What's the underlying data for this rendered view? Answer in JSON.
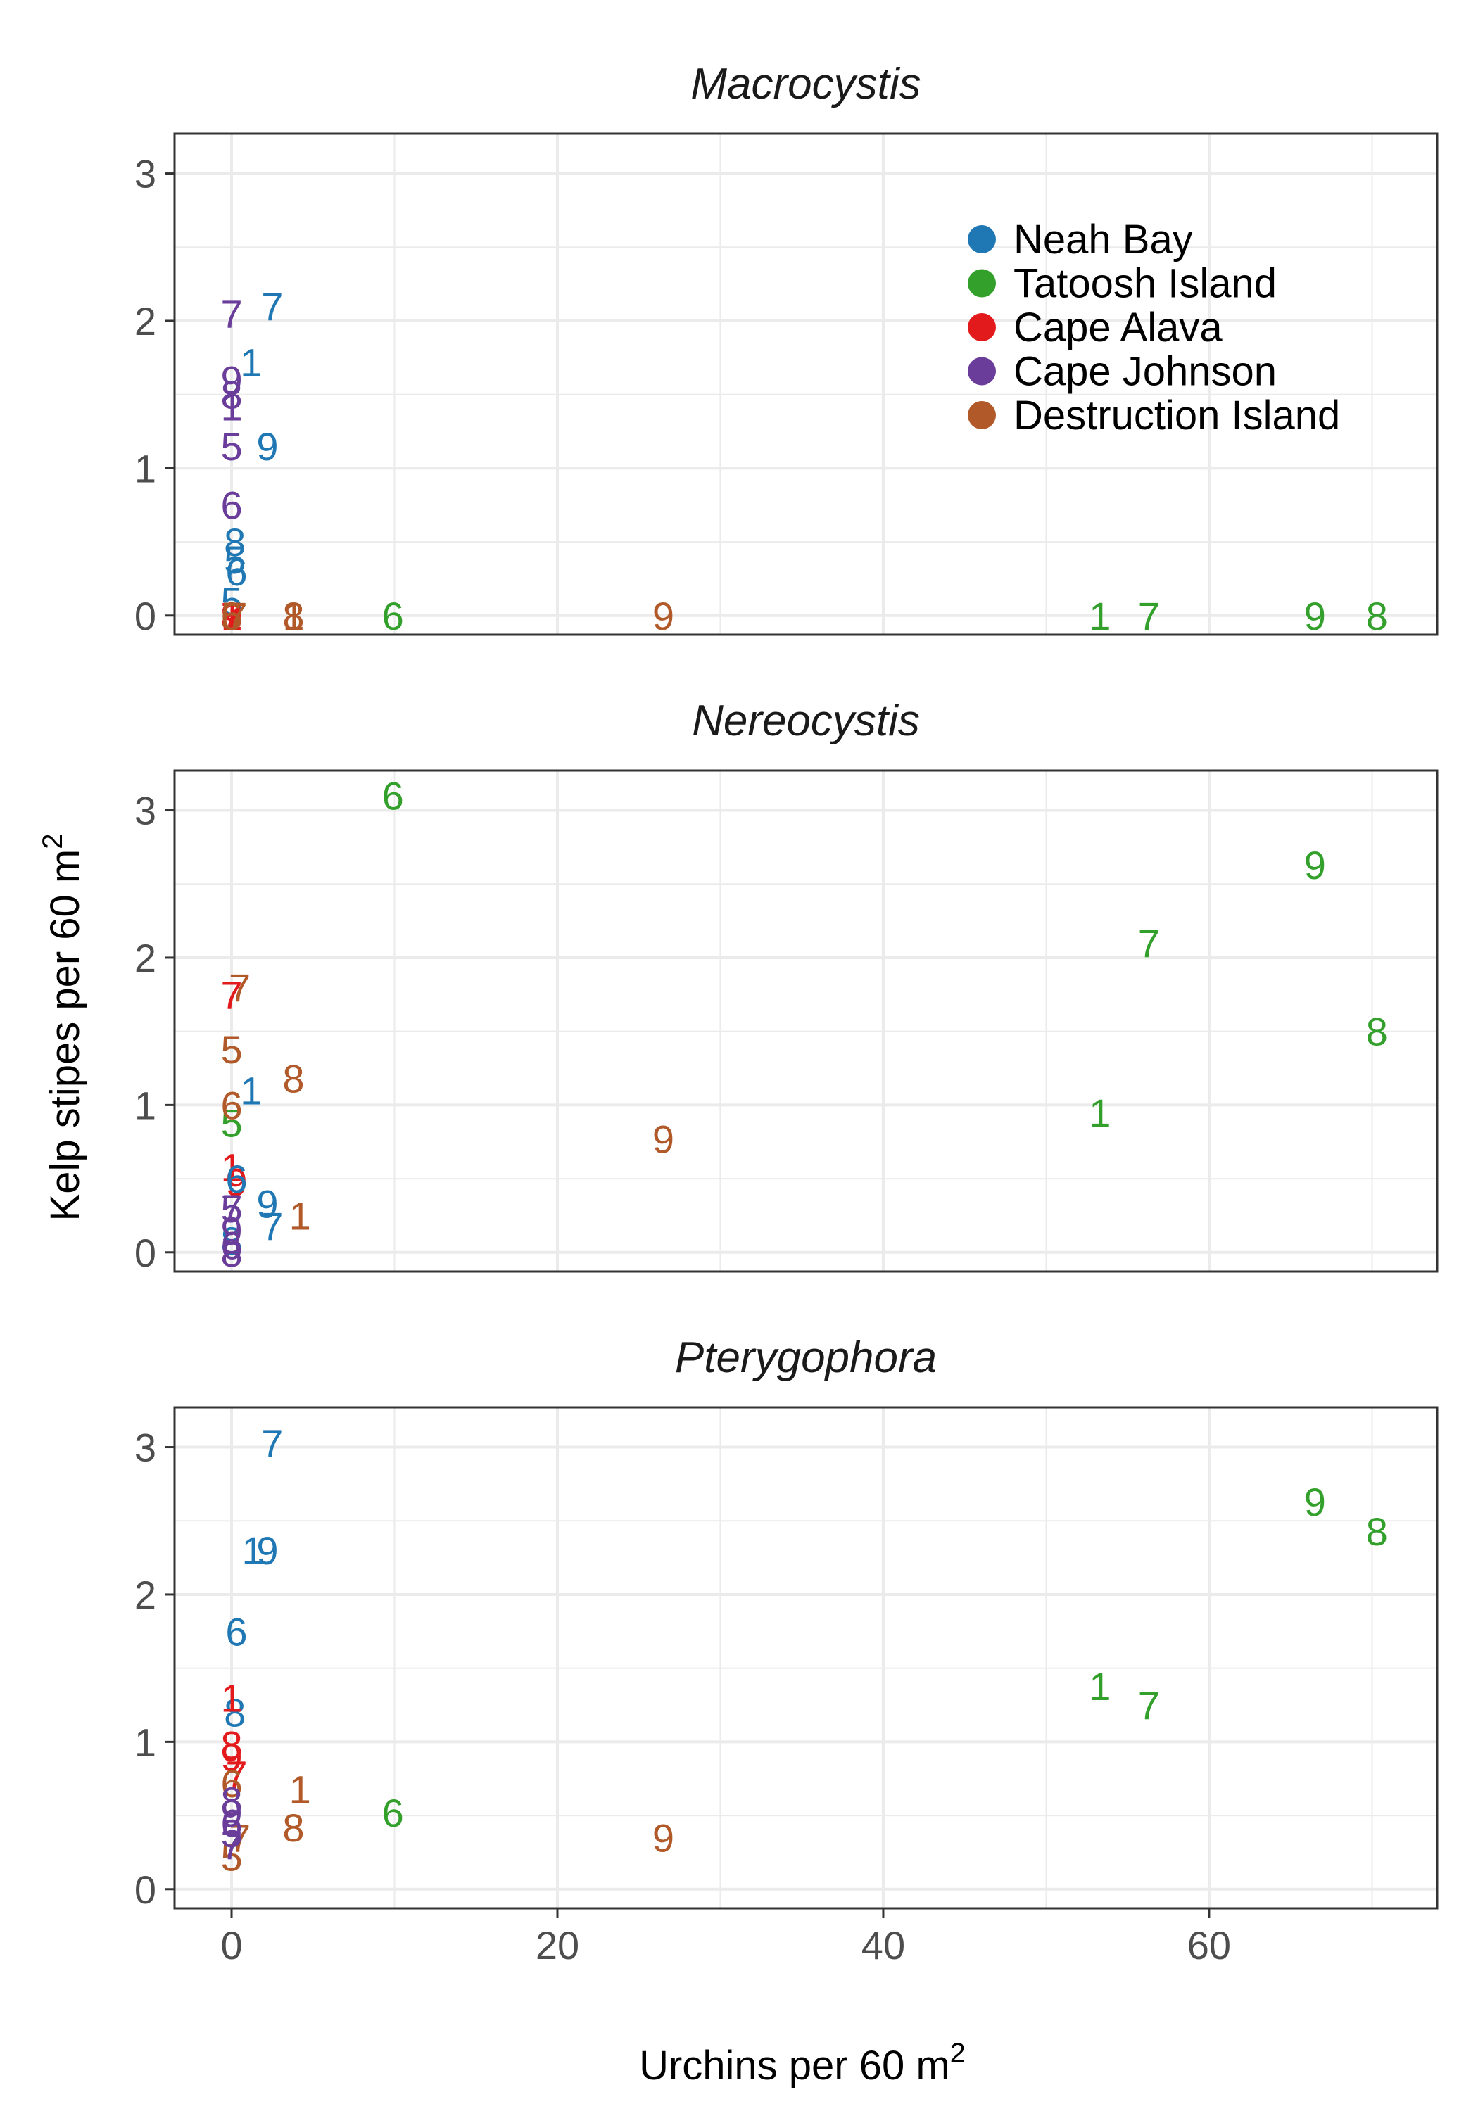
{
  "chart_data": {
    "type": "scatter",
    "marker": "site-number text labels",
    "xlabel": "Urchins per 60 m",
    "xlabel_sup": "2",
    "ylabel": "Kelp stipes per 60 m",
    "ylabel_sup": "2",
    "xlim": [
      -3.5,
      74
    ],
    "ylim": [
      -0.13,
      3.27
    ],
    "xticks": [
      0,
      20,
      40,
      60
    ],
    "yticks": [
      0,
      1,
      2,
      3
    ],
    "grid": true,
    "legend_position": "top-right (inside first panel)",
    "legend": [
      {
        "name": "Neah Bay",
        "color": "#1f78b4"
      },
      {
        "name": "Tatoosh Island",
        "color": "#33a02c"
      },
      {
        "name": "Cape Alava",
        "color": "#e31a1c"
      },
      {
        "name": "Cape Johnson",
        "color": "#6a3d9a"
      },
      {
        "name": "Destruction Island",
        "color": "#b15928"
      }
    ],
    "panels": [
      {
        "title": "Macrocystis",
        "points": [
          {
            "site": "Neah Bay",
            "label": "7",
            "x": 2.5,
            "y": 2.1
          },
          {
            "site": "Neah Bay",
            "label": "1",
            "x": 1.2,
            "y": 1.72
          },
          {
            "site": "Neah Bay",
            "label": "9",
            "x": 2.2,
            "y": 1.15
          },
          {
            "site": "Neah Bay",
            "label": "8",
            "x": 0.2,
            "y": 0.5
          },
          {
            "site": "Neah Bay",
            "label": "5",
            "x": 0.2,
            "y": 0.38
          },
          {
            "site": "Neah Bay",
            "label": "6",
            "x": 0.3,
            "y": 0.3
          },
          {
            "site": "Neah Bay",
            "label": "5",
            "x": 0.0,
            "y": 0.1
          },
          {
            "site": "Cape Johnson",
            "label": "7",
            "x": 0.0,
            "y": 2.05
          },
          {
            "site": "Cape Johnson",
            "label": "9",
            "x": 0.0,
            "y": 1.6
          },
          {
            "site": "Cape Johnson",
            "label": "8",
            "x": 0.0,
            "y": 1.5
          },
          {
            "site": "Cape Johnson",
            "label": "1",
            "x": 0.0,
            "y": 1.42
          },
          {
            "site": "Cape Johnson",
            "label": "5",
            "x": 0.0,
            "y": 1.15
          },
          {
            "site": "Cape Johnson",
            "label": "6",
            "x": 0.0,
            "y": 0.75
          },
          {
            "site": "Cape Alava",
            "label": "1",
            "x": 0.0,
            "y": 0.0
          },
          {
            "site": "Cape Alava",
            "label": "5",
            "x": 0.0,
            "y": 0.0
          },
          {
            "site": "Cape Alava",
            "label": "7",
            "x": 0.0,
            "y": 0.0
          },
          {
            "site": "Cape Alava",
            "label": "8",
            "x": 0.0,
            "y": 0.0
          },
          {
            "site": "Cape Alava",
            "label": "9",
            "x": 0.0,
            "y": 0.0
          },
          {
            "site": "Destruction Island",
            "label": "5",
            "x": 0.0,
            "y": 0.0
          },
          {
            "site": "Destruction Island",
            "label": "6",
            "x": 0.0,
            "y": 0.0
          },
          {
            "site": "Destruction Island",
            "label": "7",
            "x": 0.3,
            "y": 0.0
          },
          {
            "site": "Destruction Island",
            "label": "1",
            "x": 3.8,
            "y": 0.0
          },
          {
            "site": "Destruction Island",
            "label": "8",
            "x": 3.8,
            "y": 0.0
          },
          {
            "site": "Destruction Island",
            "label": "9",
            "x": 26.5,
            "y": 0.0
          },
          {
            "site": "Tatoosh Island",
            "label": "6",
            "x": 9.9,
            "y": 0.0
          },
          {
            "site": "Tatoosh Island",
            "label": "1",
            "x": 53.3,
            "y": 0.0
          },
          {
            "site": "Tatoosh Island",
            "label": "7",
            "x": 56.3,
            "y": 0.0
          },
          {
            "site": "Tatoosh Island",
            "label": "9",
            "x": 66.5,
            "y": 0.0
          },
          {
            "site": "Tatoosh Island",
            "label": "8",
            "x": 70.3,
            "y": 0.0
          }
        ]
      },
      {
        "title": "Nereocystis",
        "points": [
          {
            "site": "Tatoosh Island",
            "label": "6",
            "x": 9.9,
            "y": 3.1
          },
          {
            "site": "Tatoosh Island",
            "label": "9",
            "x": 66.5,
            "y": 2.63
          },
          {
            "site": "Tatoosh Island",
            "label": "7",
            "x": 56.3,
            "y": 2.1
          },
          {
            "site": "Tatoosh Island",
            "label": "8",
            "x": 70.3,
            "y": 1.5
          },
          {
            "site": "Tatoosh Island",
            "label": "1",
            "x": 53.3,
            "y": 0.95
          },
          {
            "site": "Tatoosh Island",
            "label": "5",
            "x": 0.0,
            "y": 0.88
          },
          {
            "site": "Destruction Island",
            "label": "7",
            "x": 0.5,
            "y": 1.8
          },
          {
            "site": "Destruction Island",
            "label": "5",
            "x": 0.0,
            "y": 1.38
          },
          {
            "site": "Destruction Island",
            "label": "8",
            "x": 3.8,
            "y": 1.18
          },
          {
            "site": "Destruction Island",
            "label": "6",
            "x": 0.0,
            "y": 1.0
          },
          {
            "site": "Destruction Island",
            "label": "9",
            "x": 26.5,
            "y": 0.77
          },
          {
            "site": "Destruction Island",
            "label": "1",
            "x": 4.2,
            "y": 0.25
          },
          {
            "site": "Cape Alava",
            "label": "7",
            "x": 0.0,
            "y": 1.75
          },
          {
            "site": "Cape Alava",
            "label": "1",
            "x": 0.0,
            "y": 0.58
          },
          {
            "site": "Cape Alava",
            "label": "9",
            "x": 0.3,
            "y": 0.48
          },
          {
            "site": "Neah Bay",
            "label": "1",
            "x": 1.2,
            "y": 1.1
          },
          {
            "site": "Neah Bay",
            "label": "6",
            "x": 0.3,
            "y": 0.5
          },
          {
            "site": "Neah Bay",
            "label": "9",
            "x": 2.2,
            "y": 0.33
          },
          {
            "site": "Neah Bay",
            "label": "7",
            "x": 2.5,
            "y": 0.18
          },
          {
            "site": "Neah Bay",
            "label": "8",
            "x": 0.0,
            "y": 0.08
          },
          {
            "site": "Cape Johnson",
            "label": "5",
            "x": 0.0,
            "y": 0.3
          },
          {
            "site": "Cape Johnson",
            "label": "7",
            "x": 0.0,
            "y": 0.3
          },
          {
            "site": "Cape Johnson",
            "label": "9",
            "x": 0.0,
            "y": 0.15
          },
          {
            "site": "Cape Johnson",
            "label": "6",
            "x": 0.0,
            "y": 0.05
          },
          {
            "site": "Cape Johnson",
            "label": "8",
            "x": 0.0,
            "y": 0.0
          }
        ]
      },
      {
        "title": "Pterygophora",
        "points": [
          {
            "site": "Neah Bay",
            "label": "7",
            "x": 2.5,
            "y": 3.03
          },
          {
            "site": "Neah Bay",
            "label": "1",
            "x": 1.3,
            "y": 2.3
          },
          {
            "site": "Neah Bay",
            "label": "9",
            "x": 2.2,
            "y": 2.3
          },
          {
            "site": "Neah Bay",
            "label": "6",
            "x": 0.3,
            "y": 1.75
          },
          {
            "site": "Neah Bay",
            "label": "8",
            "x": 0.2,
            "y": 1.2
          },
          {
            "site": "Tatoosh Island",
            "label": "9",
            "x": 66.5,
            "y": 2.63
          },
          {
            "site": "Tatoosh Island",
            "label": "8",
            "x": 70.3,
            "y": 2.43
          },
          {
            "site": "Tatoosh Island",
            "label": "1",
            "x": 53.3,
            "y": 1.38
          },
          {
            "site": "Tatoosh Island",
            "label": "7",
            "x": 56.3,
            "y": 1.25
          },
          {
            "site": "Tatoosh Island",
            "label": "6",
            "x": 9.9,
            "y": 0.52
          },
          {
            "site": "Cape Alava",
            "label": "1",
            "x": 0.0,
            "y": 1.3
          },
          {
            "site": "Cape Alava",
            "label": "8",
            "x": 0.0,
            "y": 0.98
          },
          {
            "site": "Cape Alava",
            "label": "9",
            "x": 0.0,
            "y": 0.9
          },
          {
            "site": "Cape Alava",
            "label": "7",
            "x": 0.3,
            "y": 0.78
          },
          {
            "site": "Destruction Island",
            "label": "6",
            "x": 0.0,
            "y": 0.72
          },
          {
            "site": "Destruction Island",
            "label": "1",
            "x": 4.2,
            "y": 0.68
          },
          {
            "site": "Destruction Island",
            "label": "8",
            "x": 3.8,
            "y": 0.42
          },
          {
            "site": "Destruction Island",
            "label": "7",
            "x": 0.5,
            "y": 0.35
          },
          {
            "site": "Destruction Island",
            "label": "9",
            "x": 26.5,
            "y": 0.35
          },
          {
            "site": "Destruction Island",
            "label": "5",
            "x": 0.0,
            "y": 0.22
          },
          {
            "site": "Cape Johnson",
            "label": "8",
            "x": 0.0,
            "y": 0.6
          },
          {
            "site": "Cape Johnson",
            "label": "9",
            "x": 0.0,
            "y": 0.52
          },
          {
            "site": "Cape Johnson",
            "label": "6",
            "x": 0.0,
            "y": 0.45
          },
          {
            "site": "Cape Johnson",
            "label": "5",
            "x": 0.0,
            "y": 0.38
          },
          {
            "site": "Cape Johnson",
            "label": "7",
            "x": 0.0,
            "y": 0.3
          }
        ]
      }
    ]
  }
}
